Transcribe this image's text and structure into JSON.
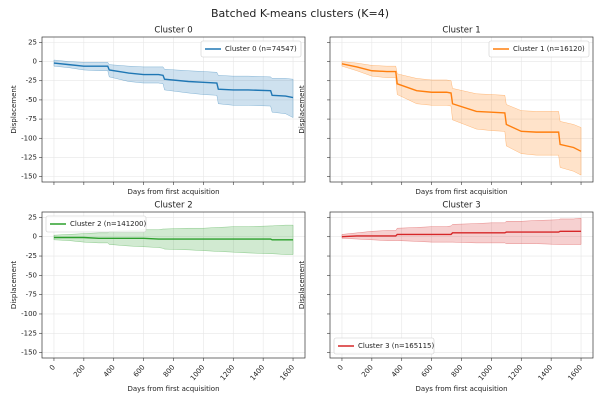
{
  "title": "Batched K-means clusters (K=4)",
  "chart_data": [
    {
      "type": "line",
      "title": "Cluster 0",
      "xlabel": "Days from first acquisition",
      "ylabel": "Displacement",
      "x": [
        0,
        100,
        200,
        300,
        360,
        370,
        500,
        600,
        700,
        730,
        740,
        900,
        1000,
        1090,
        1100,
        1200,
        1300,
        1450,
        1460,
        1550,
        1600
      ],
      "series": [
        {
          "name": "Cluster 0 (n=74547)",
          "color": "#1f77b4",
          "values": [
            -2,
            -4,
            -6,
            -6,
            -6,
            -11,
            -15,
            -17,
            -17,
            -18,
            -23,
            -26,
            -27,
            -28,
            -36,
            -37,
            -37,
            -38,
            -44,
            -45,
            -47
          ],
          "upper": [
            2,
            0,
            -1,
            -1,
            -1,
            -4,
            -6,
            -7,
            -7,
            -7,
            -10,
            -12,
            -13,
            -14,
            -18,
            -19,
            -19,
            -20,
            -22,
            -22,
            -23
          ],
          "lower": [
            -6,
            -8,
            -11,
            -12,
            -12,
            -20,
            -26,
            -28,
            -28,
            -29,
            -37,
            -41,
            -43,
            -44,
            -55,
            -57,
            -57,
            -58,
            -66,
            -68,
            -73
          ]
        }
      ],
      "xlim": [
        -80,
        1680
      ],
      "ylim": [
        -157,
        32
      ],
      "xticks": [
        0,
        200,
        400,
        600,
        800,
        1000,
        1200,
        1400,
        1600
      ],
      "yticks": [
        -150,
        -125,
        -100,
        -75,
        -50,
        -25,
        0,
        25
      ],
      "show_xticklabels": false,
      "show_yticklabels": true,
      "grid": true,
      "legend": "upper right"
    },
    {
      "type": "line",
      "title": "Cluster 1",
      "xlabel": "Days from first acquisition",
      "ylabel": "Displacement",
      "x": [
        0,
        100,
        200,
        300,
        360,
        370,
        500,
        600,
        700,
        730,
        740,
        900,
        1000,
        1090,
        1100,
        1200,
        1300,
        1450,
        1460,
        1550,
        1600
      ],
      "series": [
        {
          "name": "Cluster 1 (n=16120)",
          "color": "#ff7f0e",
          "values": [
            -3,
            -7,
            -12,
            -13,
            -13,
            -29,
            -38,
            -40,
            -40,
            -41,
            -55,
            -65,
            -66,
            -67,
            -82,
            -91,
            -92,
            -92,
            -108,
            -112,
            -117
          ],
          "upper": [
            0,
            -2,
            -5,
            -6,
            -6,
            -16,
            -22,
            -24,
            -24,
            -25,
            -35,
            -42,
            -43,
            -44,
            -56,
            -64,
            -65,
            -65,
            -78,
            -82,
            -86
          ],
          "lower": [
            -6,
            -12,
            -19,
            -21,
            -21,
            -43,
            -55,
            -57,
            -57,
            -58,
            -76,
            -88,
            -90,
            -91,
            -110,
            -120,
            -122,
            -122,
            -138,
            -143,
            -148
          ]
        }
      ],
      "xlim": [
        -80,
        1680
      ],
      "ylim": [
        -157,
        32
      ],
      "xticks": [
        0,
        200,
        400,
        600,
        800,
        1000,
        1200,
        1400,
        1600
      ],
      "yticks": [
        -150,
        -125,
        -100,
        -75,
        -50,
        -25,
        0,
        25
      ],
      "show_xticklabels": false,
      "show_yticklabels": false,
      "grid": true,
      "legend": "upper right"
    },
    {
      "type": "line",
      "title": "Cluster 2",
      "xlabel": "Days from first acquisition",
      "ylabel": "Displacement",
      "x": [
        0,
        100,
        200,
        300,
        360,
        370,
        500,
        600,
        700,
        730,
        740,
        900,
        1000,
        1090,
        1100,
        1200,
        1300,
        1450,
        1460,
        1550,
        1600
      ],
      "series": [
        {
          "name": "Cluster 2 (n=141200)",
          "color": "#2ca02c",
          "values": [
            -1,
            -1,
            -1,
            -2,
            -2,
            -2,
            -2,
            -2,
            -3,
            -3,
            -3,
            -3,
            -3,
            -3,
            -3,
            -3,
            -3,
            -3,
            -4,
            -4,
            -4
          ],
          "upper": [
            2,
            3,
            4,
            5,
            5,
            7,
            8,
            9,
            9,
            10,
            10,
            11,
            11,
            12,
            12,
            13,
            13,
            14,
            14,
            15,
            15
          ],
          "lower": [
            -4,
            -5,
            -7,
            -8,
            -8,
            -10,
            -12,
            -13,
            -14,
            -15,
            -16,
            -17,
            -18,
            -19,
            -19,
            -20,
            -21,
            -22,
            -22,
            -23,
            -23
          ]
        }
      ],
      "xlim": [
        -80,
        1680
      ],
      "ylim": [
        -157,
        32
      ],
      "xticks": [
        0,
        200,
        400,
        600,
        800,
        1000,
        1200,
        1400,
        1600
      ],
      "yticks": [
        -150,
        -125,
        -100,
        -75,
        -50,
        -25,
        0,
        25
      ],
      "show_xticklabels": true,
      "show_yticklabels": true,
      "grid": true,
      "legend": "upper left"
    },
    {
      "type": "line",
      "title": "Cluster 3",
      "xlabel": "Days from first acquisition",
      "ylabel": "Displacement",
      "x": [
        0,
        100,
        200,
        300,
        360,
        370,
        500,
        600,
        700,
        730,
        740,
        900,
        1000,
        1090,
        1100,
        1200,
        1300,
        1450,
        1460,
        1550,
        1600
      ],
      "series": [
        {
          "name": "Cluster 3 (n=165115)",
          "color": "#d62728",
          "values": [
            0,
            1,
            1,
            1,
            1,
            3,
            3,
            3,
            3,
            3,
            5,
            5,
            5,
            5,
            6,
            6,
            6,
            6,
            7,
            7,
            7
          ],
          "upper": [
            3,
            5,
            7,
            8,
            8,
            11,
            12,
            13,
            13,
            14,
            16,
            17,
            18,
            18,
            20,
            20,
            21,
            22,
            23,
            23,
            24
          ],
          "lower": [
            -2,
            -3,
            -4,
            -5,
            -5,
            -5,
            -6,
            -7,
            -7,
            -7,
            -7,
            -8,
            -8,
            -8,
            -9,
            -9,
            -9,
            -10,
            -10,
            -10,
            -10
          ]
        }
      ],
      "xlim": [
        -80,
        1680
      ],
      "ylim": [
        -157,
        32
      ],
      "xticks": [
        0,
        200,
        400,
        600,
        800,
        1000,
        1200,
        1400,
        1600
      ],
      "yticks": [
        -150,
        -125,
        -100,
        -75,
        -50,
        -25,
        0,
        25
      ],
      "show_xticklabels": true,
      "show_yticklabels": false,
      "grid": true,
      "legend": "lower left"
    }
  ]
}
